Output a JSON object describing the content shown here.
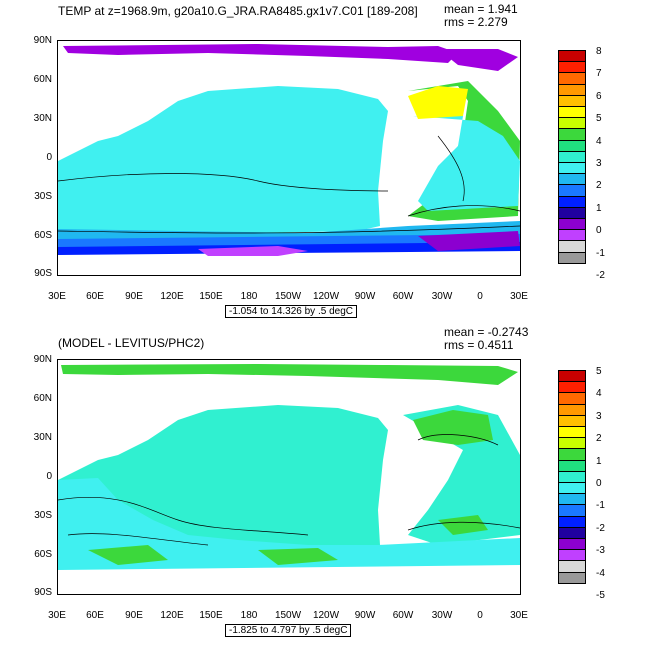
{
  "chart_data": [
    {
      "type": "heatmap",
      "title": "TEMP at z=1968.9m, g20a10.G_JRA.RA8485.gx1v7.C01 [189-208]",
      "stats": {
        "mean": "mean = 1.941",
        "rms": "rms = 2.279"
      },
      "x_ticks": [
        "30E",
        "60E",
        "90E",
        "120E",
        "150E",
        "180",
        "150W",
        "120W",
        "90W",
        "60W",
        "30W",
        "0",
        "30E"
      ],
      "y_ticks": [
        "90N",
        "60N",
        "30N",
        "0",
        "30S",
        "60S",
        "90S"
      ],
      "range_label": "-1.054 to 14.326 by .5 degC",
      "colorbar": {
        "labels": [
          "8",
          "7",
          "6",
          "5",
          "4",
          "3",
          "2",
          "1",
          "0",
          "-1",
          "-2"
        ],
        "colors": [
          "#c80000",
          "#ff2000",
          "#ff6a00",
          "#ff9900",
          "#ffc000",
          "#ffff00",
          "#c8ff00",
          "#3cd83c",
          "#20e080",
          "#30f0d0",
          "#40f0f0",
          "#20b8f0",
          "#1a78ff",
          "#0020ff",
          "#2000a0",
          "#8c00d0",
          "#c040ff",
          "#d8d8d8",
          "#999999"
        ]
      }
    },
    {
      "type": "heatmap",
      "title": "(MODEL - LEVITUS/PHC2)",
      "stats": {
        "mean": "mean = -0.2743",
        "rms": "rms = 0.4511"
      },
      "x_ticks": [
        "30E",
        "60E",
        "90E",
        "120E",
        "150E",
        "180",
        "150W",
        "120W",
        "90W",
        "60W",
        "30W",
        "0",
        "30E"
      ],
      "y_ticks": [
        "90N",
        "60N",
        "30N",
        "0",
        "30S",
        "60S",
        "90S"
      ],
      "range_label": "-1.825 to 4.797 by .5 degC",
      "colorbar": {
        "labels": [
          "5",
          "4",
          "3",
          "2",
          "1",
          "0",
          "-1",
          "-2",
          "-3",
          "-4",
          "-5"
        ],
        "colors": [
          "#c80000",
          "#ff2000",
          "#ff6a00",
          "#ff9900",
          "#ffc000",
          "#ffff00",
          "#c8ff00",
          "#3cd83c",
          "#20e080",
          "#30f0d0",
          "#40f0f0",
          "#20b8f0",
          "#1a78ff",
          "#0020ff",
          "#2000a0",
          "#8c00d0",
          "#c040ff",
          "#d8d8d8",
          "#999999"
        ]
      }
    }
  ]
}
